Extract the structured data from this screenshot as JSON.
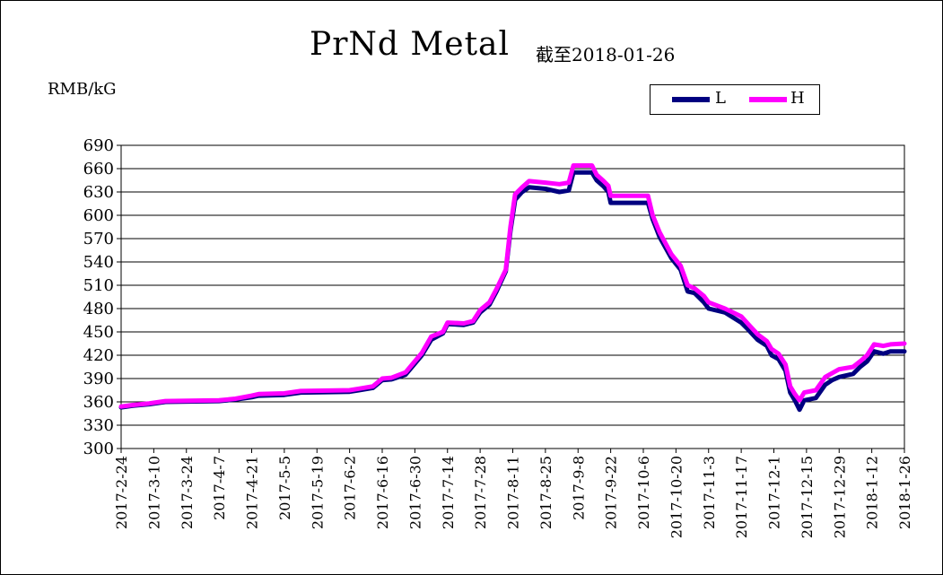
{
  "chart_data": {
    "type": "line",
    "title": "PrNd Metal",
    "subtitle": "截至2018-01-26",
    "ylabel": "RMB/kG",
    "ylim": [
      300,
      690
    ],
    "yticks": [
      300,
      330,
      360,
      390,
      420,
      450,
      480,
      510,
      540,
      570,
      600,
      630,
      660,
      690
    ],
    "xlim": [
      "2017-2-24",
      "2018-1-26"
    ],
    "xticks": [
      "2017-2-24",
      "2017-3-10",
      "2017-3-24",
      "2017-4-7",
      "2017-4-21",
      "2017-5-5",
      "2017-5-19",
      "2017-6-2",
      "2017-6-16",
      "2017-6-30",
      "2017-7-14",
      "2017-7-28",
      "2017-8-11",
      "2017-8-25",
      "2017-9-8",
      "2017-9-22",
      "2017-10-6",
      "2017-10-20",
      "2017-11-3",
      "2017-11-17",
      "2017-12-1",
      "2017-12-15",
      "2017-12-29",
      "2018-1-12",
      "2018-1-26"
    ],
    "grid": true,
    "legend_position": "top-right",
    "series": [
      {
        "name": "L",
        "color": "#000080",
        "points": [
          [
            "2017-2-24",
            353
          ],
          [
            "2017-3-1",
            355
          ],
          [
            "2017-3-8",
            357
          ],
          [
            "2017-3-15",
            360
          ],
          [
            "2017-4-7",
            361
          ],
          [
            "2017-4-14",
            363
          ],
          [
            "2017-4-21",
            366
          ],
          [
            "2017-4-24",
            368
          ],
          [
            "2017-5-5",
            369
          ],
          [
            "2017-5-12",
            372
          ],
          [
            "2017-6-2",
            373
          ],
          [
            "2017-6-6",
            375
          ],
          [
            "2017-6-12",
            378
          ],
          [
            "2017-6-16",
            388
          ],
          [
            "2017-6-20",
            389
          ],
          [
            "2017-6-26",
            395
          ],
          [
            "2017-7-3",
            420
          ],
          [
            "2017-7-7",
            440
          ],
          [
            "2017-7-12",
            448
          ],
          [
            "2017-7-14",
            460
          ],
          [
            "2017-7-21",
            459
          ],
          [
            "2017-7-25",
            462
          ],
          [
            "2017-7-28",
            475
          ],
          [
            "2017-8-1",
            485
          ],
          [
            "2017-8-4",
            502
          ],
          [
            "2017-8-8",
            528
          ],
          [
            "2017-8-10",
            580
          ],
          [
            "2017-8-12",
            620
          ],
          [
            "2017-8-15",
            630
          ],
          [
            "2017-8-18",
            636
          ],
          [
            "2017-8-25",
            634
          ],
          [
            "2017-8-31",
            630
          ],
          [
            "2017-9-4",
            632
          ],
          [
            "2017-9-6",
            655
          ],
          [
            "2017-9-14",
            655
          ],
          [
            "2017-9-16",
            645
          ],
          [
            "2017-9-19",
            637
          ],
          [
            "2017-9-21",
            630
          ],
          [
            "2017-9-22",
            616
          ],
          [
            "2017-10-8",
            616
          ],
          [
            "2017-10-10",
            595
          ],
          [
            "2017-10-13",
            572
          ],
          [
            "2017-10-18",
            545
          ],
          [
            "2017-10-22",
            530
          ],
          [
            "2017-10-25",
            502
          ],
          [
            "2017-10-28",
            500
          ],
          [
            "2017-11-1",
            488
          ],
          [
            "2017-11-3",
            480
          ],
          [
            "2017-11-10",
            475
          ],
          [
            "2017-11-17",
            462
          ],
          [
            "2017-11-20",
            453
          ],
          [
            "2017-11-24",
            440
          ],
          [
            "2017-11-28",
            432
          ],
          [
            "2017-11-30",
            420
          ],
          [
            "2017-12-3",
            415
          ],
          [
            "2017-12-6",
            400
          ],
          [
            "2017-12-8",
            372
          ],
          [
            "2017-12-10",
            362
          ],
          [
            "2017-12-12",
            350
          ],
          [
            "2017-12-14",
            362
          ],
          [
            "2017-12-19",
            365
          ],
          [
            "2017-12-23",
            382
          ],
          [
            "2017-12-26",
            388
          ],
          [
            "2017-12-29",
            392
          ],
          [
            "2018-1-4",
            396
          ],
          [
            "2018-1-7",
            405
          ],
          [
            "2018-1-10",
            412
          ],
          [
            "2018-1-13",
            425
          ],
          [
            "2018-1-17",
            422
          ],
          [
            "2018-1-20",
            425
          ],
          [
            "2018-1-26",
            425
          ]
        ]
      },
      {
        "name": "H",
        "color": "#ff00ff",
        "points": [
          [
            "2017-2-24",
            354
          ],
          [
            "2017-3-1",
            356
          ],
          [
            "2017-3-8",
            358
          ],
          [
            "2017-3-15",
            361
          ],
          [
            "2017-4-7",
            362
          ],
          [
            "2017-4-14",
            364
          ],
          [
            "2017-4-21",
            368
          ],
          [
            "2017-4-24",
            370
          ],
          [
            "2017-5-5",
            371
          ],
          [
            "2017-5-12",
            374
          ],
          [
            "2017-6-2",
            375
          ],
          [
            "2017-6-6",
            377
          ],
          [
            "2017-6-12",
            380
          ],
          [
            "2017-6-16",
            390
          ],
          [
            "2017-6-20",
            391
          ],
          [
            "2017-6-26",
            398
          ],
          [
            "2017-7-3",
            423
          ],
          [
            "2017-7-7",
            444
          ],
          [
            "2017-7-12",
            450
          ],
          [
            "2017-7-14",
            462
          ],
          [
            "2017-7-21",
            461
          ],
          [
            "2017-7-25",
            464
          ],
          [
            "2017-7-28",
            478
          ],
          [
            "2017-8-1",
            488
          ],
          [
            "2017-8-4",
            505
          ],
          [
            "2017-8-8",
            530
          ],
          [
            "2017-8-10",
            585
          ],
          [
            "2017-8-12",
            627
          ],
          [
            "2017-8-15",
            636
          ],
          [
            "2017-8-18",
            644
          ],
          [
            "2017-8-25",
            642
          ],
          [
            "2017-8-31",
            640
          ],
          [
            "2017-9-4",
            642
          ],
          [
            "2017-9-6",
            664
          ],
          [
            "2017-9-14",
            664
          ],
          [
            "2017-9-16",
            652
          ],
          [
            "2017-9-19",
            644
          ],
          [
            "2017-9-21",
            638
          ],
          [
            "2017-9-22",
            625
          ],
          [
            "2017-10-8",
            625
          ],
          [
            "2017-10-10",
            600
          ],
          [
            "2017-10-13",
            578
          ],
          [
            "2017-10-18",
            550
          ],
          [
            "2017-10-22",
            535
          ],
          [
            "2017-10-25",
            510
          ],
          [
            "2017-10-28",
            506
          ],
          [
            "2017-11-1",
            496
          ],
          [
            "2017-11-3",
            488
          ],
          [
            "2017-11-10",
            480
          ],
          [
            "2017-11-17",
            470
          ],
          [
            "2017-11-20",
            460
          ],
          [
            "2017-11-24",
            447
          ],
          [
            "2017-11-28",
            438
          ],
          [
            "2017-11-30",
            428
          ],
          [
            "2017-12-3",
            422
          ],
          [
            "2017-12-6",
            408
          ],
          [
            "2017-12-8",
            380
          ],
          [
            "2017-12-10",
            370
          ],
          [
            "2017-12-12",
            362
          ],
          [
            "2017-12-14",
            372
          ],
          [
            "2017-12-19",
            375
          ],
          [
            "2017-12-23",
            392
          ],
          [
            "2017-12-26",
            397
          ],
          [
            "2017-12-29",
            402
          ],
          [
            "2018-1-4",
            405
          ],
          [
            "2018-1-7",
            412
          ],
          [
            "2018-1-10",
            420
          ],
          [
            "2018-1-13",
            434
          ],
          [
            "2018-1-17",
            432
          ],
          [
            "2018-1-20",
            434
          ],
          [
            "2018-1-26",
            435
          ]
        ]
      }
    ]
  }
}
